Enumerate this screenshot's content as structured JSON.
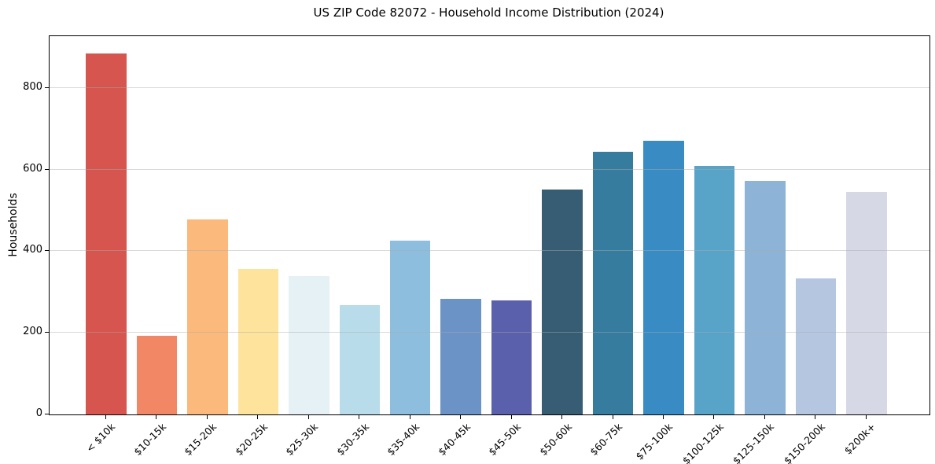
{
  "chart_data": {
    "type": "bar",
    "title": "US ZIP Code 82072 - Household Income Distribution (2024)",
    "xlabel": "",
    "ylabel": "Households",
    "categories": [
      "< $10k",
      "$10-15k",
      "$15-20k",
      "$20-25k",
      "$25-30k",
      "$30-35k",
      "$35-40k",
      "$40-45k",
      "$45-50k",
      "$50-60k",
      "$60-75k",
      "$75-100k",
      "$100-125k",
      "$125-150k",
      "$150-200k",
      "$200k+"
    ],
    "values": [
      885,
      192,
      478,
      356,
      339,
      267,
      425,
      284,
      279,
      552,
      643,
      670,
      609,
      572,
      333,
      545
    ],
    "bar_colors": [
      "#d6564f",
      "#f28765",
      "#fbb97c",
      "#fde39c",
      "#e5f1f4",
      "#b8dce9",
      "#8dbedd",
      "#6c93c6",
      "#5a60ab",
      "#365d73",
      "#357c9e",
      "#388cc3",
      "#58a3c8",
      "#8db4d6",
      "#b5c7e0",
      "#d6d8e5"
    ],
    "ylim": [
      0,
      927
    ],
    "yticks": [
      0,
      200,
      400,
      600,
      800
    ],
    "grid": "horizontal-light",
    "legend": "none",
    "x_tick_rotation": 45
  }
}
